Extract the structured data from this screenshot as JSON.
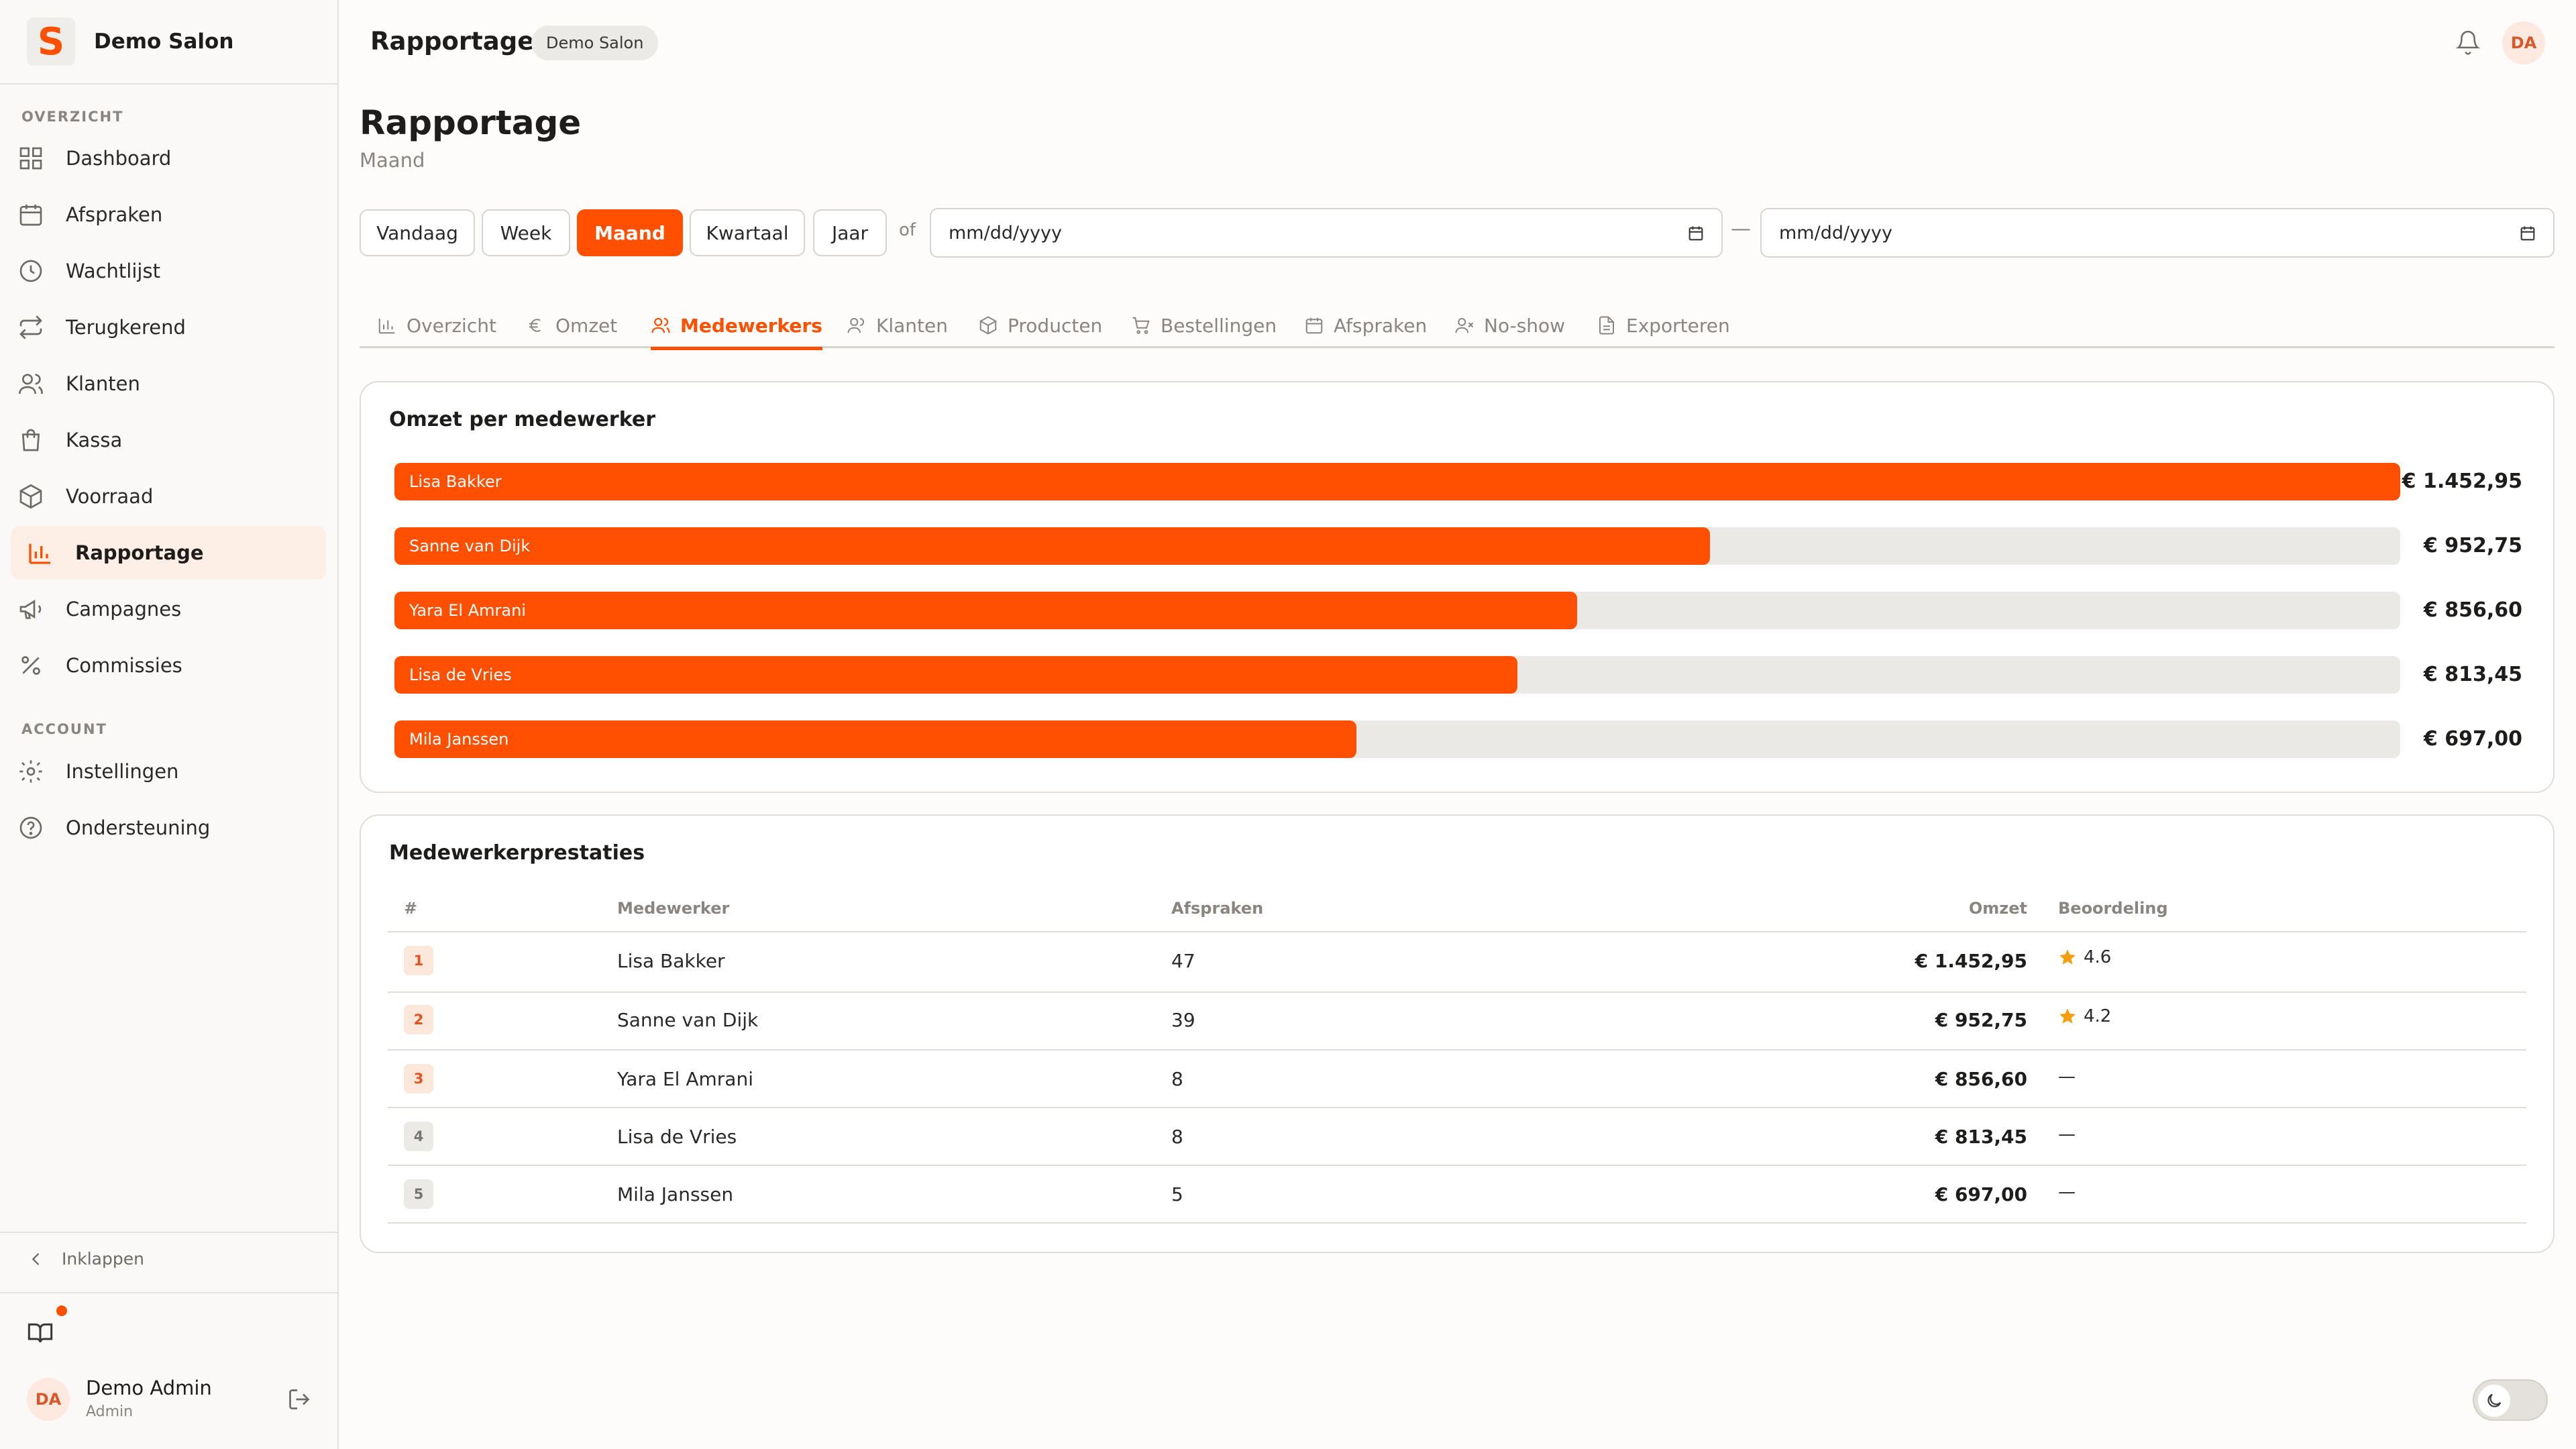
{
  "sidebar": {
    "brand_letter": "S",
    "brand_name": "Demo Salon",
    "section_overview": "OVERZICHT",
    "section_account": "ACCOUNT",
    "items": [
      {
        "label": "Dashboard",
        "icon": "grid-icon"
      },
      {
        "label": "Afspraken",
        "icon": "calendar-icon"
      },
      {
        "label": "Wachtlijst",
        "icon": "clock-icon"
      },
      {
        "label": "Terugkerend",
        "icon": "repeat-icon"
      },
      {
        "label": "Klanten",
        "icon": "users-icon"
      },
      {
        "label": "Kassa",
        "icon": "shopping-bag-icon"
      },
      {
        "label": "Voorraad",
        "icon": "package-icon"
      },
      {
        "label": "Rapportage",
        "icon": "bar-chart-icon",
        "active": true
      },
      {
        "label": "Campagnes",
        "icon": "megaphone-icon"
      },
      {
        "label": "Commissies",
        "icon": "percent-icon"
      }
    ],
    "account_items": [
      {
        "label": "Instellingen",
        "icon": "gear-icon"
      },
      {
        "label": "Ondersteuning",
        "icon": "help-circle-icon"
      }
    ],
    "collapse_label": "Inklappen",
    "user": {
      "initials": "DA",
      "name": "Demo Admin",
      "role": "Admin"
    }
  },
  "topbar": {
    "title": "Rapportage",
    "badge": "Demo Salon",
    "avatar_initials": "DA"
  },
  "page": {
    "title": "Rapportage",
    "subtitle": "Maand"
  },
  "filters": {
    "periods": [
      "Vandaag",
      "Week",
      "Maand",
      "Kwartaal",
      "Jaar"
    ],
    "active_period": "Maand",
    "or_label": "of",
    "date_from_placeholder": "mm/dd/yyyy",
    "date_to_placeholder": "mm/dd/yyyy",
    "range_separator": "—"
  },
  "tabs": [
    {
      "label": "Overzicht",
      "icon": "bar-chart-icon"
    },
    {
      "label": "Omzet",
      "icon": "euro-icon"
    },
    {
      "label": "Medewerkers",
      "icon": "users-icon",
      "active": true
    },
    {
      "label": "Klanten",
      "icon": "user-icon"
    },
    {
      "label": "Producten",
      "icon": "package-icon"
    },
    {
      "label": "Bestellingen",
      "icon": "cart-icon"
    },
    {
      "label": "Afspraken",
      "icon": "calendar-icon"
    },
    {
      "label": "No-show",
      "icon": "user-x-icon"
    },
    {
      "label": "Exporteren",
      "icon": "file-icon"
    }
  ],
  "revenue_card": {
    "title": "Omzet per medewerker"
  },
  "chart_data": {
    "type": "bar",
    "orientation": "horizontal",
    "title": "Omzet per medewerker",
    "categories": [
      "Lisa Bakker",
      "Sanne van Dijk",
      "Yara El Amrani",
      "Lisa de Vries",
      "Mila Janssen"
    ],
    "values": [
      1452.95,
      952.75,
      856.6,
      813.45,
      697.0
    ],
    "value_labels": [
      "€ 1.452,95",
      "€ 952,75",
      "€ 856,60",
      "€ 813,45",
      "€ 697,00"
    ],
    "xlim": [
      0,
      1452.95
    ],
    "bar_color": "#ff4f00",
    "track_color": "#ebe9e5"
  },
  "performance": {
    "title": "Medewerkerprestaties",
    "columns": [
      "#",
      "Medewerker",
      "Afspraken",
      "Omzet",
      "Beoordeling"
    ],
    "rows": [
      {
        "rank": "1",
        "name": "Lisa Bakker",
        "appointments": "47",
        "revenue": "€ 1.452,95",
        "rating": "4.6"
      },
      {
        "rank": "2",
        "name": "Sanne van Dijk",
        "appointments": "39",
        "revenue": "€ 952,75",
        "rating": "4.2"
      },
      {
        "rank": "3",
        "name": "Yara El Amrani",
        "appointments": "8",
        "revenue": "€ 856,60",
        "rating": "—"
      },
      {
        "rank": "4",
        "name": "Lisa de Vries",
        "appointments": "8",
        "revenue": "€ 813,45",
        "rating": "—"
      },
      {
        "rank": "5",
        "name": "Mila Janssen",
        "appointments": "5",
        "revenue": "€ 697,00",
        "rating": "—"
      }
    ]
  },
  "colors": {
    "accent": "#ff4f00",
    "star": "#f59e0b"
  }
}
